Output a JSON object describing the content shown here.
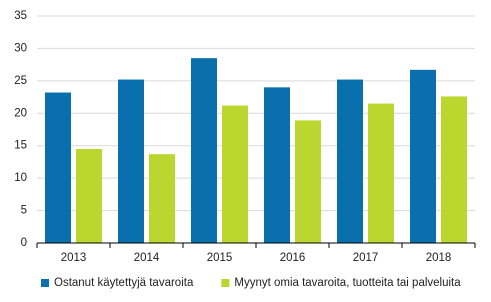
{
  "chart_data": {
    "type": "bar",
    "categories": [
      "2013",
      "2014",
      "2015",
      "2016",
      "2017",
      "2018"
    ],
    "series": [
      {
        "name": "Ostanut käytettyjä tavaroita",
        "color": "#0a6fad",
        "values": [
          23.2,
          25.2,
          28.5,
          24.0,
          25.2,
          26.7
        ]
      },
      {
        "name": "Myynyt omia tavaroita, tuotteita tai palveluita",
        "color": "#bcd630",
        "values": [
          14.5,
          13.7,
          21.2,
          18.9,
          21.5,
          22.6
        ]
      }
    ],
    "ylim": [
      0,
      35
    ],
    "yticks": [
      0,
      5,
      10,
      15,
      20,
      25,
      30,
      35
    ],
    "grid": true
  }
}
